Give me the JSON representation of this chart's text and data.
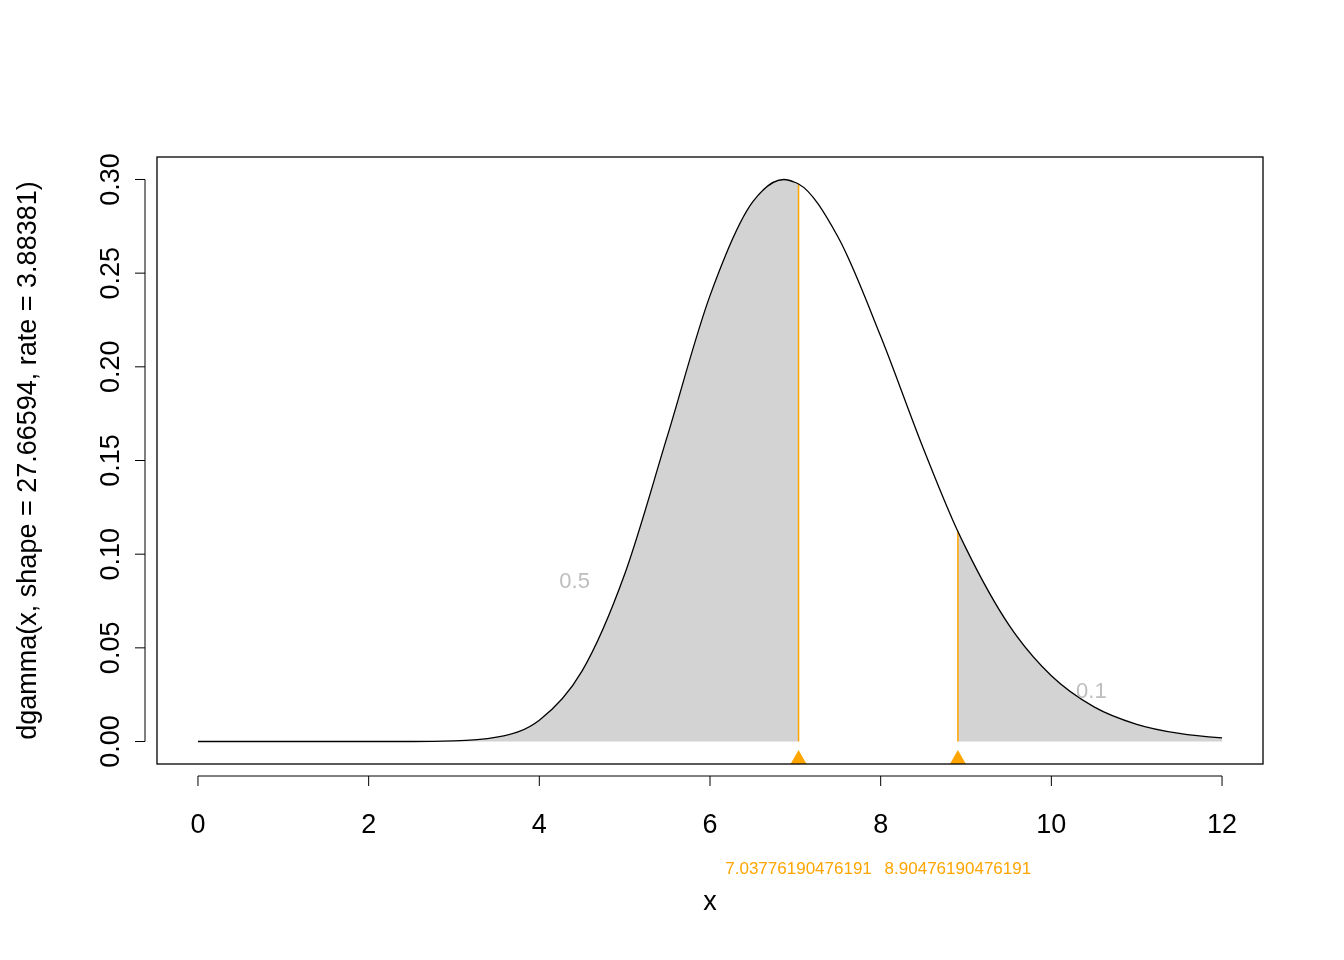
{
  "chart_data": {
    "type": "line",
    "xlabel": "x",
    "ylabel": "dgamma(x, shape = 27.66594, rate = 3.88381)",
    "xlim": [
      -0.48,
      12.48
    ],
    "ylim": [
      -0.012,
      0.312
    ],
    "xticks": [
      0,
      2,
      4,
      6,
      8,
      10,
      12
    ],
    "yticks": [
      {
        "value": 0,
        "label": "0.00"
      },
      {
        "value": 0.05,
        "label": "0.05"
      },
      {
        "value": 0.1,
        "label": "0.10"
      },
      {
        "value": 0.15,
        "label": "0.15"
      },
      {
        "value": 0.2,
        "label": "0.20"
      },
      {
        "value": 0.25,
        "label": "0.25"
      },
      {
        "value": 0.3,
        "label": "0.30"
      }
    ],
    "grid": false,
    "marker": "none",
    "line_style": "solid",
    "series": [
      {
        "type": "area",
        "color": "#d3d3d3",
        "x": [
          0,
          0.5,
          1,
          1.5,
          2,
          2.5,
          3,
          3.5,
          4,
          4.5,
          5,
          5.5,
          6,
          6.5,
          6.866,
          7,
          7.03776190476191
        ],
        "values": [
          0,
          0,
          0,
          0,
          0,
          0,
          0.0003,
          0.0023,
          0.0114,
          0.0376,
          0.0893,
          0.163,
          0.238,
          0.288,
          0.3,
          0.2984,
          0.2976
        ]
      },
      {
        "type": "area",
        "color": "#d3d3d3",
        "x": [
          8.90476190476191,
          9,
          9.5,
          10,
          10.5,
          11,
          11.5,
          12
        ],
        "values": [
          0.1121,
          0.1031,
          0.0624,
          0.0351,
          0.0185,
          0.0092,
          0.0043,
          0.0019
        ]
      },
      {
        "color": "#000000",
        "x": [
          0,
          0.5,
          1,
          1.5,
          2,
          2.5,
          3,
          3.5,
          4,
          4.5,
          5,
          5.5,
          6,
          6.5,
          6.866,
          7,
          7.03776190476191,
          7.5,
          8,
          8.5,
          8.90476190476191,
          9,
          9.5,
          10,
          10.5,
          11,
          11.5,
          12
        ],
        "values": [
          0,
          0,
          0,
          0,
          0,
          0,
          0.0003,
          0.0023,
          0.0114,
          0.0376,
          0.0893,
          0.163,
          0.238,
          0.288,
          0.3,
          0.2984,
          0.2976,
          0.2693,
          0.2163,
          0.1564,
          0.1121,
          0.1031,
          0.0624,
          0.0351,
          0.0185,
          0.0092,
          0.0043,
          0.0019
        ]
      }
    ],
    "ref_lines": [
      {
        "axis": "x",
        "value": 7.03776190476191,
        "label": "7.03776190476191",
        "color": "#ffa500"
      },
      {
        "axis": "x",
        "value": 8.90476190476191,
        "label": "8.90476190476191",
        "color": "#ffa500"
      }
    ],
    "annotations": [
      "0.5",
      "0.1"
    ]
  }
}
